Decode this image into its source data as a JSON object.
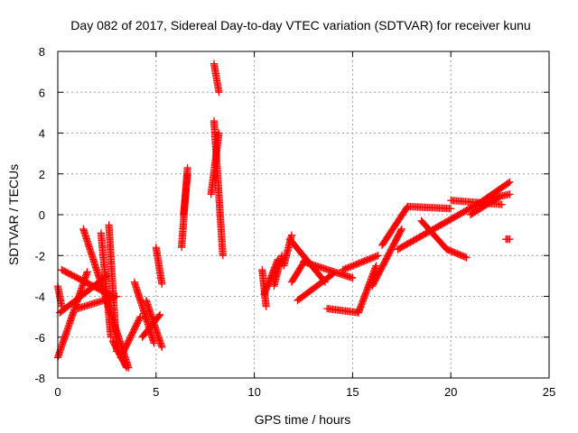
{
  "colors": {
    "series": "#ff0000",
    "axis": "#000000",
    "grid": "#a0a0a0"
  },
  "chart_data": {
    "type": "scatter",
    "title": "Day 082 of 2017, Sidereal Day-to-day VTEC variation (SDTVAR) for receiver kunu",
    "xlabel": "GPS time / hours",
    "ylabel": "SDTVAR / TECUs",
    "xlim": [
      0,
      25
    ],
    "ylim": [
      -8,
      8
    ],
    "xticks": [
      0,
      5,
      10,
      15,
      20,
      25
    ],
    "yticks": [
      -8,
      -6,
      -4,
      -2,
      0,
      2,
      4,
      6,
      8
    ],
    "grid": true,
    "marker": "plus",
    "tracks": [
      {
        "start": [
          0.0,
          -3.5
        ],
        "end": [
          0.2,
          -4.5
        ]
      },
      {
        "start": [
          0.0,
          -7.0
        ],
        "end": [
          1.5,
          -2.8
        ]
      },
      {
        "start": [
          0.2,
          -2.7
        ],
        "end": [
          2.8,
          -4.0
        ]
      },
      {
        "start": [
          0.1,
          -4.8
        ],
        "end": [
          2.5,
          -3.0
        ]
      },
      {
        "start": [
          1.3,
          -0.7
        ],
        "end": [
          3.6,
          -7.5
        ]
      },
      {
        "start": [
          2.2,
          -0.9
        ],
        "end": [
          2.7,
          -6.0
        ]
      },
      {
        "start": [
          2.6,
          -0.5
        ],
        "end": [
          3.0,
          -6.7
        ]
      },
      {
        "start": [
          1.0,
          -4.6
        ],
        "end": [
          3.0,
          -4.0
        ]
      },
      {
        "start": [
          2.8,
          -6.2
        ],
        "end": [
          3.5,
          -7.5
        ]
      },
      {
        "start": [
          3.2,
          -7.0
        ],
        "end": [
          4.2,
          -5.0
        ]
      },
      {
        "start": [
          3.9,
          -3.3
        ],
        "end": [
          4.9,
          -6.3
        ]
      },
      {
        "start": [
          4.3,
          -6.0
        ],
        "end": [
          5.2,
          -4.9
        ]
      },
      {
        "start": [
          4.5,
          -4.2
        ],
        "end": [
          5.3,
          -6.5
        ]
      },
      {
        "start": [
          5.0,
          -1.6
        ],
        "end": [
          5.3,
          -3.4
        ]
      },
      {
        "start": [
          6.3,
          -1.6
        ],
        "end": [
          6.6,
          2.3
        ]
      },
      {
        "start": [
          6.4,
          0.0
        ],
        "end": [
          6.6,
          2.0
        ]
      },
      {
        "start": [
          7.95,
          7.4
        ],
        "end": [
          8.2,
          6.0
        ]
      },
      {
        "start": [
          7.95,
          4.6
        ],
        "end": [
          8.4,
          -2.0
        ]
      },
      {
        "start": [
          7.8,
          1.0
        ],
        "end": [
          8.2,
          4.0
        ]
      },
      {
        "start": [
          10.4,
          -2.7
        ],
        "end": [
          10.6,
          -4.5
        ]
      },
      {
        "start": [
          10.5,
          -3.9
        ],
        "end": [
          11.2,
          -2.2
        ]
      },
      {
        "start": [
          11.0,
          -3.5
        ],
        "end": [
          11.4,
          -2.0
        ]
      },
      {
        "start": [
          11.5,
          -2.5
        ],
        "end": [
          11.9,
          -1.0
        ]
      },
      {
        "start": [
          11.9,
          -3.3
        ],
        "end": [
          12.6,
          -2.2
        ]
      },
      {
        "start": [
          12.2,
          -4.2
        ],
        "end": [
          14.0,
          -2.9
        ]
      },
      {
        "start": [
          11.8,
          -1.2
        ],
        "end": [
          13.6,
          -3.3
        ]
      },
      {
        "start": [
          12.5,
          -2.3
        ],
        "end": [
          15.0,
          -3.1
        ]
      },
      {
        "start": [
          13.7,
          -4.6
        ],
        "end": [
          15.3,
          -4.8
        ]
      },
      {
        "start": [
          15.3,
          -4.8
        ],
        "end": [
          16.2,
          -2.5
        ]
      },
      {
        "start": [
          14.5,
          -2.7
        ],
        "end": [
          16.3,
          -2.0
        ]
      },
      {
        "start": [
          16.0,
          -3.5
        ],
        "end": [
          17.5,
          -0.7
        ]
      },
      {
        "start": [
          16.5,
          -1.5
        ],
        "end": [
          17.8,
          0.4
        ]
      },
      {
        "start": [
          17.8,
          0.4
        ],
        "end": [
          20.0,
          0.3
        ]
      },
      {
        "start": [
          17.3,
          -1.7
        ],
        "end": [
          19.5,
          -0.5
        ]
      },
      {
        "start": [
          19.5,
          -0.5
        ],
        "end": [
          21.5,
          0.6
        ]
      },
      {
        "start": [
          18.5,
          -0.3
        ],
        "end": [
          19.8,
          -1.7
        ]
      },
      {
        "start": [
          19.8,
          -1.7
        ],
        "end": [
          20.8,
          -2.1
        ]
      },
      {
        "start": [
          20.0,
          0.7
        ],
        "end": [
          22.6,
          0.5
        ]
      },
      {
        "start": [
          21.0,
          0.0
        ],
        "end": [
          22.5,
          0.9
        ]
      },
      {
        "start": [
          21.5,
          0.6
        ],
        "end": [
          23.0,
          1.6
        ]
      },
      {
        "start": [
          22.0,
          0.8
        ],
        "end": [
          23.0,
          1.0
        ]
      },
      {
        "start": [
          22.8,
          -1.2
        ],
        "end": [
          23.0,
          -1.2
        ]
      }
    ]
  }
}
